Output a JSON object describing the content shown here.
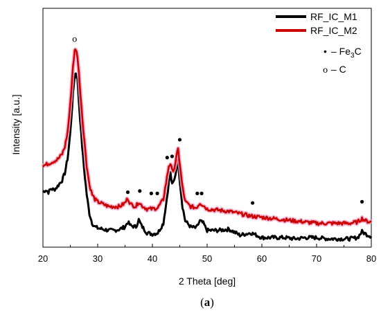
{
  "caption": {
    "open": "(",
    "letter": "a",
    "close": ")"
  },
  "chart_data": {
    "type": "line",
    "xlabel": "2 Theta [deg]",
    "ylabel": "Intensity [a.u.]",
    "xlim": [
      20,
      80
    ],
    "ylim": [
      0,
      100
    ],
    "xticks": [
      20,
      30,
      40,
      50,
      60,
      70,
      80
    ],
    "yticks_shown": false,
    "grid": false,
    "legend_position": "top-right",
    "series": [
      {
        "name": "RF_IC_M1",
        "color": "#000000",
        "points": [
          [
            20,
            23
          ],
          [
            20.5,
            24
          ],
          [
            21,
            23
          ],
          [
            21.5,
            24.5
          ],
          [
            22,
            24
          ],
          [
            22.5,
            25
          ],
          [
            23,
            26.5
          ],
          [
            23.5,
            28
          ],
          [
            24,
            31
          ],
          [
            24.5,
            37
          ],
          [
            25,
            48
          ],
          [
            25.5,
            64
          ],
          [
            25.8,
            72
          ],
          [
            26,
            73
          ],
          [
            26.3,
            70
          ],
          [
            26.6,
            60
          ],
          [
            27,
            47
          ],
          [
            27.5,
            33
          ],
          [
            28,
            22
          ],
          [
            28.5,
            14
          ],
          [
            29,
            10
          ],
          [
            29.5,
            8.5
          ],
          [
            30,
            8
          ],
          [
            31,
            7.5
          ],
          [
            32,
            7
          ],
          [
            33,
            7
          ],
          [
            34,
            7.5
          ],
          [
            35,
            8.5
          ],
          [
            35.5,
            10.5
          ],
          [
            36,
            9
          ],
          [
            37,
            8.5
          ],
          [
            37.5,
            11.5
          ],
          [
            38,
            9
          ],
          [
            39,
            6
          ],
          [
            40,
            5.5
          ],
          [
            41,
            6
          ],
          [
            42,
            10
          ],
          [
            42.5,
            18
          ],
          [
            43,
            27
          ],
          [
            43.3,
            31
          ],
          [
            43.6,
            26
          ],
          [
            44,
            28
          ],
          [
            44.4,
            33
          ],
          [
            44.7,
            36
          ],
          [
            45,
            28
          ],
          [
            45.5,
            17
          ],
          [
            46,
            11
          ],
          [
            47,
            8.5
          ],
          [
            48,
            8
          ],
          [
            48.7,
            11
          ],
          [
            49.3,
            10
          ],
          [
            50,
            7
          ],
          [
            52,
            7
          ],
          [
            54,
            7.5
          ],
          [
            56,
            5
          ],
          [
            58,
            6
          ],
          [
            60,
            4
          ],
          [
            62,
            4
          ],
          [
            64,
            4
          ],
          [
            65,
            3.8
          ],
          [
            66,
            3.5
          ],
          [
            68,
            4
          ],
          [
            70,
            4
          ],
          [
            72,
            3.5
          ],
          [
            74,
            3.5
          ],
          [
            76,
            3.5
          ],
          [
            77.5,
            4
          ],
          [
            78.3,
            6.5
          ],
          [
            79,
            5.5
          ],
          [
            80,
            4.5
          ]
        ]
      },
      {
        "name": "RF_IC_M2",
        "color": "#cc0000",
        "points": [
          [
            20,
            34
          ],
          [
            20.5,
            34.5
          ],
          [
            21,
            35
          ],
          [
            21.5,
            35.5
          ],
          [
            22,
            36
          ],
          [
            22.5,
            36.5
          ],
          [
            23,
            37.5
          ],
          [
            23.5,
            39
          ],
          [
            24,
            42
          ],
          [
            24.5,
            48
          ],
          [
            25,
            60
          ],
          [
            25.5,
            76
          ],
          [
            25.8,
            82
          ],
          [
            26,
            83
          ],
          [
            26.3,
            80
          ],
          [
            26.6,
            72
          ],
          [
            27,
            60
          ],
          [
            27.5,
            46
          ],
          [
            28,
            34
          ],
          [
            28.5,
            26
          ],
          [
            29,
            22
          ],
          [
            29.5,
            20
          ],
          [
            30,
            19
          ],
          [
            31,
            18
          ],
          [
            32,
            17
          ],
          [
            33,
            17
          ],
          [
            34,
            17
          ],
          [
            35,
            18.5
          ],
          [
            35.5,
            20.5
          ],
          [
            36,
            18
          ],
          [
            37,
            17
          ],
          [
            37.5,
            19
          ],
          [
            38,
            17.5
          ],
          [
            39,
            16
          ],
          [
            40,
            16
          ],
          [
            41,
            16.5
          ],
          [
            42,
            20
          ],
          [
            42.5,
            27
          ],
          [
            43,
            34
          ],
          [
            43.3,
            35
          ],
          [
            43.6,
            32
          ],
          [
            44,
            33
          ],
          [
            44.4,
            38
          ],
          [
            44.7,
            41
          ],
          [
            45,
            35
          ],
          [
            45.5,
            25
          ],
          [
            46,
            19
          ],
          [
            47,
            17
          ],
          [
            48,
            16.5
          ],
          [
            48.7,
            18.5
          ],
          [
            49.3,
            17.5
          ],
          [
            50,
            16
          ],
          [
            52,
            15.5
          ],
          [
            54,
            15
          ],
          [
            56,
            14
          ],
          [
            58,
            13
          ],
          [
            60,
            12.5
          ],
          [
            62,
            12
          ],
          [
            64,
            11.5
          ],
          [
            66,
            11
          ],
          [
            68,
            10.5
          ],
          [
            70,
            10
          ],
          [
            72,
            10
          ],
          [
            74,
            10
          ],
          [
            76,
            10
          ],
          [
            77.5,
            10.5
          ],
          [
            78.3,
            12
          ],
          [
            79,
            11
          ],
          [
            80,
            10.5
          ]
        ]
      }
    ],
    "phase_legend": [
      {
        "symbol": "•",
        "label": "– Fe",
        "subscript": "3",
        "label_tail": "C"
      },
      {
        "symbol": "o",
        "label": "– C",
        "subscript": "",
        "label_tail": ""
      }
    ],
    "peak_markers": [
      {
        "x": 25.8,
        "y": 86,
        "symbol": "o"
      },
      {
        "x": 35.5,
        "y": 23,
        "symbol": "•"
      },
      {
        "x": 37.7,
        "y": 23.5,
        "symbol": "•"
      },
      {
        "x": 39.8,
        "y": 22.5,
        "symbol": "•"
      },
      {
        "x": 40.9,
        "y": 22.5,
        "symbol": "•"
      },
      {
        "x": 42.7,
        "y": 37.5,
        "symbol": "•"
      },
      {
        "x": 43.6,
        "y": 38,
        "symbol": "•"
      },
      {
        "x": 45,
        "y": 45,
        "symbol": "•"
      },
      {
        "x": 48.2,
        "y": 22.5,
        "symbol": "•"
      },
      {
        "x": 49,
        "y": 22.5,
        "symbol": "•"
      },
      {
        "x": 58.3,
        "y": 18.5,
        "symbol": "•"
      },
      {
        "x": 78.3,
        "y": 19,
        "symbol": "•"
      }
    ]
  }
}
